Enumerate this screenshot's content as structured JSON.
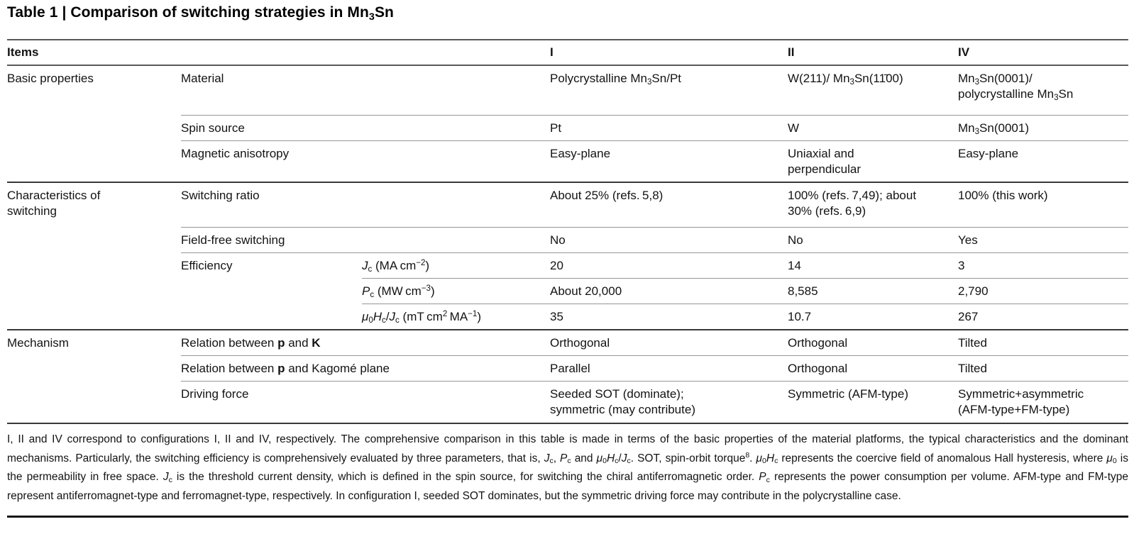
{
  "style": {
    "background": "#ffffff",
    "text_color": "#131313",
    "rule_major": "#383838",
    "rule_minor": "#969696",
    "rule_bottom": "#141414"
  },
  "title_html": "Table 1 | Comparison of switching strategies in Mn<sub>3</sub>Sn",
  "table": {
    "header": {
      "items": "Items",
      "col_I": "I",
      "col_II": "II",
      "col_IV": "IV"
    },
    "rows": [
      {
        "section": "Basic properties",
        "item": "Material",
        "v1": "Polycrystalline Mn<sub>3</sub>Sn/Pt",
        "v2": "W(211)/ Mn<sub>3</sub>Sn(11̄00)",
        "v3": "Mn<sub>3</sub>Sn(0001)/<br>polycrystalline Mn<sub>3</sub>Sn"
      },
      {
        "item": "Spin source",
        "v1": "Pt",
        "v2": "W",
        "v3": "Mn<sub>3</sub>Sn(0001)"
      },
      {
        "item": "Magnetic anisotropy",
        "v1": "Easy-plane",
        "v2": "Uniaxial and<br>perpendicular",
        "v3": "Easy-plane"
      },
      {
        "section": "Characteristics of<br>switching",
        "item": "Switching ratio",
        "v1": "About 25% (refs. 5,8)",
        "v2": "100% (refs. 7,49); about<br>30% (refs. 6,9)",
        "v3": "100% (this work)"
      },
      {
        "item": "Field-free switching",
        "v1": "No",
        "v2": "No",
        "v3": "Yes"
      },
      {
        "item": "Efficiency",
        "param": "<i>J</i><sub>c</sub> (MA cm<sup>−2</sup>)",
        "v1": "20",
        "v2": "14",
        "v3": "3"
      },
      {
        "param": "<i>P</i><sub>c</sub> (MW cm<sup>−3</sup>)",
        "v1": "About 20,000",
        "v2": "8,585",
        "v3": "2,790"
      },
      {
        "param": "<i>μ</i><sub>0</sub><i>H</i><sub>c</sub>/<i>J</i><sub>c</sub> (mT cm<sup>2</sup> MA<sup>−1</sup>)",
        "v1": "35",
        "v2": "10.7",
        "v3": "267"
      },
      {
        "section": "Mechanism",
        "item": "Relation between <b>p</b> and <b>K</b>",
        "v1": "Orthogonal",
        "v2": "Orthogonal",
        "v3": "Tilted"
      },
      {
        "item": "Relation between <b>p</b> and Kagomé plane",
        "v1": "Parallel",
        "v2": "Orthogonal",
        "v3": "Tilted"
      },
      {
        "item": "Driving force",
        "v1": "Seeded SOT (dominate);<br>symmetric (may contribute)",
        "v2": "Symmetric (AFM-type)",
        "v3": "Symmetric+asymmetric<br>(AFM-type+FM-type)"
      }
    ]
  },
  "footnote_html": "I, II and IV correspond to configurations I, II and IV, respectively. The comprehensive comparison in this table is made in terms of the basic properties of the material platforms, the typical characteristics and the dominant mechanisms. Particularly, the switching efficiency is comprehensively evaluated by three parameters, that is, <i>J</i><sub>c</sub>, <i>P</i><sub>c</sub> and <i>μ</i><sub>0</sub><i>H</i><sub>c</sub>/<i>J</i><sub>c</sub>. SOT, spin-orbit torque<sup>8</sup>. <i>μ</i><sub>0</sub><i>H</i><sub>c</sub> represents the coercive field of anomalous Hall hysteresis, where <i>μ</i><sub>0</sub> is the permeability in free space. <i>J</i><sub>c</sub> is the threshold current density, which is defined in the spin source, for switching the chiral antiferromagnetic order. <i>P</i><sub>c</sub> represents the power consumption per volume. AFM-type and FM-type represent antiferromagnet-type and ferromagnet-type, respectively. In configuration I, seeded SOT dominates, but the symmetric driving force may contribute in the polycrystalline case."
}
